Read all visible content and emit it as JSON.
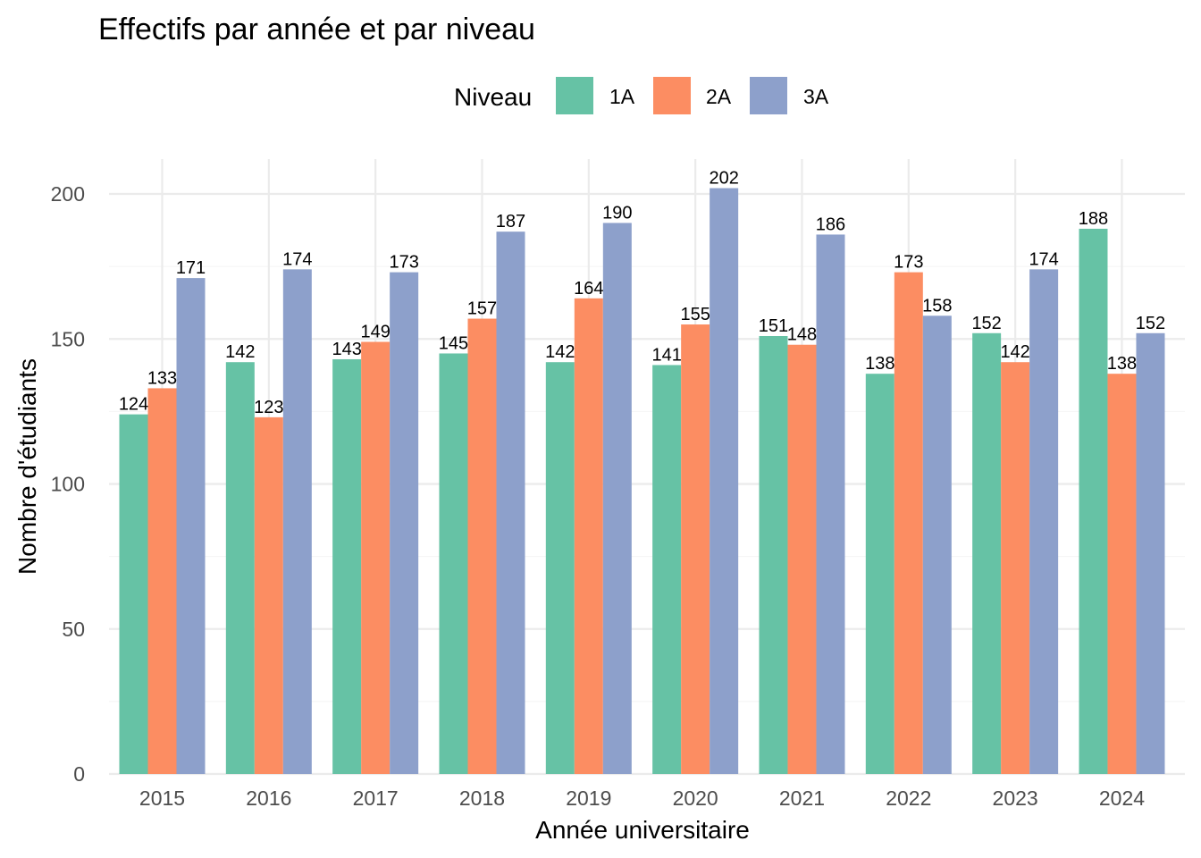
{
  "chart_data": {
    "type": "bar",
    "title": "Effectifs par année et par niveau",
    "xlabel": "Année universitaire",
    "ylabel": "Nombre d'étudiants",
    "categories": [
      "2015",
      "2016",
      "2017",
      "2018",
      "2019",
      "2020",
      "2021",
      "2022",
      "2023",
      "2024"
    ],
    "series": [
      {
        "name": "1A",
        "color": "#66c2a5",
        "values": [
          124,
          142,
          143,
          145,
          142,
          141,
          151,
          138,
          152,
          188
        ]
      },
      {
        "name": "2A",
        "color": "#fc8d62",
        "values": [
          133,
          123,
          149,
          157,
          164,
          155,
          148,
          173,
          142,
          138
        ]
      },
      {
        "name": "3A",
        "color": "#8da0cb",
        "values": [
          171,
          174,
          173,
          187,
          190,
          202,
          186,
          158,
          174,
          152
        ]
      }
    ],
    "ylim": [
      0,
      215
    ],
    "yticks": [
      0,
      50,
      100,
      150,
      200
    ],
    "legend": {
      "title": "Niveau",
      "position": "top"
    },
    "grid": true
  }
}
